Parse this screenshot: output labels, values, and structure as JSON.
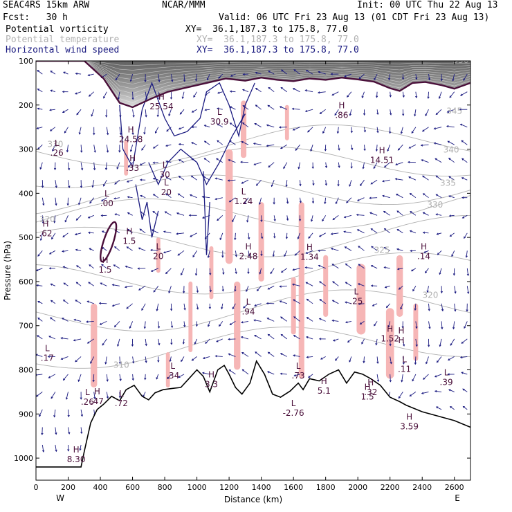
{
  "header": {
    "model": "SEAC4RS 15km ARW",
    "org": "NCAR/MMM",
    "init": "Init: 00 UTC Thu 22 Aug 13",
    "fcst": "Fcst:   30 h",
    "valid": "Valid: 06 UTC Fri 23 Aug 13 (01 CDT Fri 23 Aug 13)",
    "fields": [
      {
        "name": "Potential vorticity",
        "xy": "XY=  36.1,187.3 to 175.8, 77.0",
        "color": "#000000"
      },
      {
        "name": "Potential temperature",
        "xy": "XY=  36.1,187.3 to 175.8, 77.0",
        "color": "#b0b0b0"
      },
      {
        "name": "Horizontal wind speed",
        "xy": "XY=  36.1,187.3 to 175.8, 77.0",
        "color": "#1a1a80"
      }
    ]
  },
  "chart_data": {
    "type": "cross-section",
    "xlabel": "Distance (km)",
    "ylabel": "Pressure (hPa)",
    "xlim": [
      0,
      2700
    ],
    "ylim": [
      1050,
      100
    ],
    "x_ticks": [
      0,
      200,
      400,
      600,
      800,
      1000,
      1200,
      1400,
      1600,
      1800,
      2000,
      2200,
      2400,
      2600
    ],
    "y_ticks": [
      100,
      200,
      300,
      400,
      500,
      600,
      700,
      800,
      900,
      1000
    ],
    "x_end_labels": {
      "left": "W",
      "right": "E"
    },
    "colors": {
      "wind": "#1a1a80",
      "pv_contour": "#4a0f3a",
      "theta": "#b0b0b0",
      "pv_fill": "#f6b6b6",
      "terrain": "#000000"
    },
    "terrain": [
      [
        0,
        1020
      ],
      [
        280,
        1020
      ],
      [
        300,
        985
      ],
      [
        340,
        920
      ],
      [
        380,
        890
      ],
      [
        420,
        878
      ],
      [
        470,
        860
      ],
      [
        520,
        870
      ],
      [
        560,
        845
      ],
      [
        610,
        835
      ],
      [
        660,
        860
      ],
      [
        700,
        868
      ],
      [
        740,
        852
      ],
      [
        790,
        845
      ],
      [
        850,
        842
      ],
      [
        900,
        840
      ],
      [
        950,
        820
      ],
      [
        1000,
        800
      ],
      [
        1040,
        815
      ],
      [
        1080,
        850
      ],
      [
        1130,
        800
      ],
      [
        1170,
        790
      ],
      [
        1200,
        810
      ],
      [
        1240,
        840
      ],
      [
        1280,
        855
      ],
      [
        1330,
        830
      ],
      [
        1370,
        780
      ],
      [
        1420,
        810
      ],
      [
        1470,
        855
      ],
      [
        1520,
        862
      ],
      [
        1580,
        848
      ],
      [
        1630,
        830
      ],
      [
        1660,
        845
      ],
      [
        1700,
        820
      ],
      [
        1760,
        825
      ],
      [
        1820,
        810
      ],
      [
        1880,
        800
      ],
      [
        1930,
        830
      ],
      [
        1980,
        805
      ],
      [
        2030,
        810
      ],
      [
        2080,
        820
      ],
      [
        2140,
        835
      ],
      [
        2200,
        862
      ],
      [
        2260,
        872
      ],
      [
        2300,
        880
      ],
      [
        2400,
        895
      ],
      [
        2500,
        905
      ],
      [
        2600,
        915
      ],
      [
        2700,
        930
      ]
    ],
    "pv2_line": [
      [
        0,
        100
      ],
      [
        300,
        100
      ],
      [
        420,
        140
      ],
      [
        520,
        195
      ],
      [
        600,
        205
      ],
      [
        720,
        185
      ],
      [
        820,
        170
      ],
      [
        940,
        160
      ],
      [
        1060,
        150
      ],
      [
        1180,
        140
      ],
      [
        1300,
        145
      ],
      [
        1400,
        138
      ],
      [
        1500,
        143
      ],
      [
        1600,
        146
      ],
      [
        1700,
        140
      ],
      [
        1800,
        143
      ],
      [
        1900,
        138
      ],
      [
        2000,
        142
      ],
      [
        2100,
        147
      ],
      [
        2200,
        162
      ],
      [
        2260,
        168
      ],
      [
        2340,
        150
      ],
      [
        2420,
        148
      ],
      [
        2520,
        155
      ],
      [
        2600,
        163
      ],
      [
        2700,
        150
      ]
    ],
    "theta_labels": [
      {
        "x": 120,
        "p": 295,
        "text": "330"
      },
      {
        "x": 70,
        "p": 465,
        "text": "320"
      },
      {
        "x": 530,
        "p": 795,
        "text": "310"
      },
      {
        "x": 2580,
        "p": 308,
        "text": "340"
      },
      {
        "x": 2560,
        "p": 383,
        "text": "335"
      },
      {
        "x": 2480,
        "p": 432,
        "text": "330"
      },
      {
        "x": 2150,
        "p": 535,
        "text": "325"
      },
      {
        "x": 2450,
        "p": 637,
        "text": "320"
      },
      {
        "x": 2600,
        "p": 220,
        "text": "345"
      },
      {
        "x": 2640,
        "p": 105,
        "text": "350"
      }
    ],
    "extrema": [
      {
        "x": 130,
        "p": 305,
        "marker": "L",
        "value": ".26"
      },
      {
        "x": 60,
        "p": 488,
        "marker": "H",
        "value": ".62"
      },
      {
        "x": 440,
        "p": 420,
        "marker": "L",
        "value": ".00"
      },
      {
        "x": 590,
        "p": 275,
        "marker": "H",
        "value": "24.58"
      },
      {
        "x": 600,
        "p": 340,
        "marker": "H",
        "value": ".33"
      },
      {
        "x": 580,
        "p": 505,
        "marker": "H",
        "value": "1.5"
      },
      {
        "x": 430,
        "p": 570,
        "marker": "H",
        "value": "1.5"
      },
      {
        "x": 780,
        "p": 200,
        "marker": "H",
        "value": "25.54"
      },
      {
        "x": 800,
        "p": 355,
        "marker": "L",
        "value": "30"
      },
      {
        "x": 810,
        "p": 395,
        "marker": "L",
        "value": "20"
      },
      {
        "x": 760,
        "p": 540,
        "marker": "L",
        "value": "20"
      },
      {
        "x": 1140,
        "p": 235,
        "marker": "L",
        "value": "30.9"
      },
      {
        "x": 1290,
        "p": 415,
        "marker": "L",
        "value": "1.24"
      },
      {
        "x": 1320,
        "p": 540,
        "marker": "H",
        "value": "2.48"
      },
      {
        "x": 1320,
        "p": 665,
        "marker": "L",
        "value": ".94"
      },
      {
        "x": 1700,
        "p": 541,
        "marker": "H",
        "value": "1.34"
      },
      {
        "x": 1900,
        "p": 220,
        "marker": "H",
        "value": ".86"
      },
      {
        "x": 2150,
        "p": 322,
        "marker": "H",
        "value": "14.51"
      },
      {
        "x": 2410,
        "p": 540,
        "marker": "H",
        "value": ".14"
      },
      {
        "x": 1990,
        "p": 642,
        "marker": "L",
        "value": ".25"
      },
      {
        "x": 2200,
        "p": 726,
        "marker": "H",
        "value": "1.52"
      },
      {
        "x": 2270,
        "p": 730,
        "marker": "H",
        "value": "H"
      },
      {
        "x": 70,
        "p": 770,
        "marker": "L",
        "value": ".17"
      },
      {
        "x": 850,
        "p": 810,
        "marker": "L",
        "value": ".34"
      },
      {
        "x": 1090,
        "p": 830,
        "marker": "H",
        "value": "3.3"
      },
      {
        "x": 1630,
        "p": 810,
        "marker": "L",
        "value": ".73"
      },
      {
        "x": 2290,
        "p": 795,
        "marker": "L",
        "value": ".11"
      },
      {
        "x": 2550,
        "p": 825,
        "marker": "L",
        "value": ".39"
      },
      {
        "x": 320,
        "p": 870,
        "marker": "L",
        "value": ".26"
      },
      {
        "x": 380,
        "p": 868,
        "marker": "H",
        "value": ".47"
      },
      {
        "x": 530,
        "p": 873,
        "marker": "L",
        "value": ".72"
      },
      {
        "x": 1790,
        "p": 845,
        "marker": "H",
        "value": "5.1"
      },
      {
        "x": 2080,
        "p": 848,
        "marker": "H",
        "value": ".32"
      },
      {
        "x": 2060,
        "p": 858,
        "marker": "H",
        "value": "1.5"
      },
      {
        "x": 1600,
        "p": 895,
        "marker": "L",
        "value": "-2.76"
      },
      {
        "x": 2320,
        "p": 925,
        "marker": "H",
        "value": "3.59"
      },
      {
        "x": 250,
        "p": 1000,
        "marker": "H",
        "value": "8.30"
      }
    ]
  }
}
